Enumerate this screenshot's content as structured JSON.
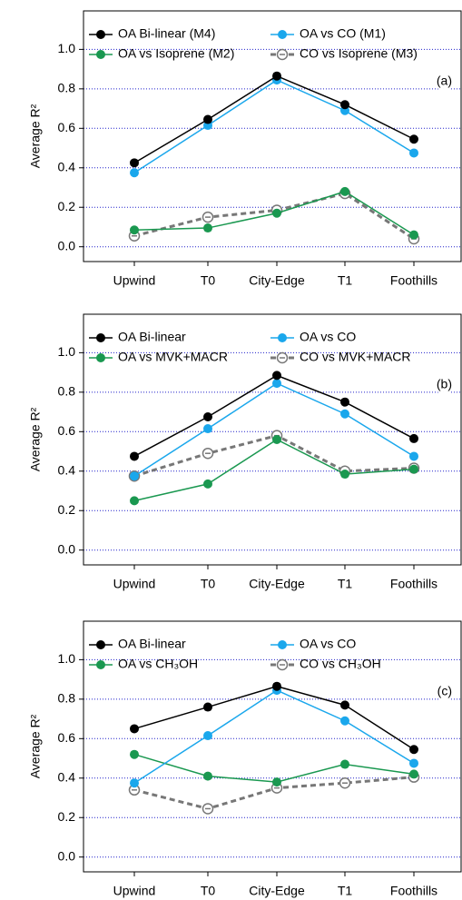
{
  "chart_data": [
    {
      "type": "line",
      "ylabel": "Average R²",
      "annotation": "(a)",
      "categories": [
        "Upwind",
        "T0",
        "City-Edge",
        "T1",
        "Foothills"
      ],
      "ylim": [
        -0.075,
        1.195
      ],
      "yticks": [
        {
          "value": 0,
          "label": "0.0"
        },
        0.2,
        0.4,
        0.6,
        0.8,
        {
          "value": 1,
          "label": "1.0"
        }
      ],
      "grid": true,
      "series": [
        {
          "name": "OA Bi-linear (M4)",
          "color": "#000000",
          "values": [
            0.425,
            0.645,
            0.865,
            0.72,
            0.545
          ]
        },
        {
          "name": "OA vs CO (M1)",
          "color": "#1aa7ec",
          "values": [
            0.375,
            0.615,
            0.845,
            0.69,
            0.475
          ]
        },
        {
          "name": "OA vs Isoprene (M2)",
          "color": "#1a9850",
          "values": [
            0.085,
            0.095,
            0.17,
            0.28,
            0.06
          ]
        },
        {
          "name": "CO vs Isoprene (M3)",
          "color": "#777777",
          "dashed": true,
          "values": [
            0.055,
            0.15,
            0.185,
            0.27,
            0.04
          ]
        }
      ]
    },
    {
      "type": "line",
      "ylabel": "Average R²",
      "annotation": "(b)",
      "categories": [
        "Upwind",
        "T0",
        "City-Edge",
        "T1",
        "Foothills"
      ],
      "ylim": [
        -0.075,
        1.195
      ],
      "yticks": [
        {
          "value": 0,
          "label": "0.0"
        },
        0.2,
        0.4,
        0.6,
        0.8,
        {
          "value": 1,
          "label": "1.0"
        }
      ],
      "grid": true,
      "series": [
        {
          "name": "OA Bi-linear",
          "color": "#000000",
          "values": [
            0.475,
            0.675,
            0.885,
            0.75,
            0.565
          ]
        },
        {
          "name": "OA vs CO",
          "color": "#1aa7ec",
          "values": [
            0.375,
            0.615,
            0.845,
            0.69,
            0.475
          ]
        },
        {
          "name": "OA vs MVK+MACR",
          "color": "#1a9850",
          "values": [
            0.25,
            0.335,
            0.56,
            0.385,
            0.41
          ]
        },
        {
          "name": "CO vs MVK+MACR",
          "color": "#777777",
          "dashed": true,
          "values": [
            0.375,
            0.49,
            0.58,
            0.4,
            0.415
          ]
        }
      ]
    },
    {
      "type": "line",
      "ylabel": "Average R²",
      "annotation": "(c)",
      "categories": [
        "Upwind",
        "T0",
        "City-Edge",
        "T1",
        "Foothills"
      ],
      "ylim": [
        -0.075,
        1.195
      ],
      "yticks": [
        {
          "value": 0,
          "label": "0.0"
        },
        0.2,
        0.4,
        0.6,
        0.8,
        {
          "value": 1,
          "label": "1.0"
        }
      ],
      "grid": true,
      "series": [
        {
          "name": "OA Bi-linear",
          "color": "#000000",
          "values": [
            0.65,
            0.76,
            0.865,
            0.77,
            0.545
          ]
        },
        {
          "name": "OA vs CO",
          "color": "#1aa7ec",
          "values": [
            0.375,
            0.615,
            0.845,
            0.69,
            0.475
          ]
        },
        {
          "name": "OA vs CH₃OH",
          "color": "#1a9850",
          "values": [
            0.52,
            0.41,
            0.38,
            0.47,
            0.42
          ]
        },
        {
          "name": "CO vs CH₃OH",
          "color": "#777777",
          "dashed": true,
          "values": [
            0.34,
            0.245,
            0.35,
            0.375,
            0.405
          ]
        }
      ]
    }
  ]
}
